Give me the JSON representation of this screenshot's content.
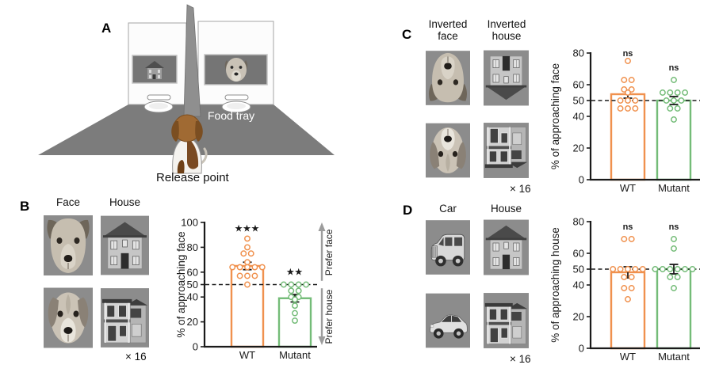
{
  "colors": {
    "wt": "#F0914E",
    "mutant": "#74BC78",
    "annotation_arrow": "#9C9C9C",
    "axis": "#1A1A1A"
  },
  "panelA": {
    "label": "A",
    "food_tray_label": "Food tray",
    "release_point_label": "Release point"
  },
  "panelB": {
    "label": "B",
    "col1": "Face",
    "col2": "House",
    "multiplier": "× 16"
  },
  "panelC": {
    "label": "C",
    "col1": "Inverted face",
    "col2": "Inverted house",
    "multiplier": "× 16"
  },
  "panelD": {
    "label": "D",
    "col1": "Car",
    "col2": "House",
    "multiplier": "× 16"
  },
  "chart_data": [
    {
      "panel": "B",
      "type": "bar",
      "title": "",
      "ylabel": "% of approaching face",
      "ylim": [
        0,
        100
      ],
      "yticks": [
        0,
        20,
        40,
        50,
        60,
        80,
        100
      ],
      "dashed_line": 50,
      "grid": false,
      "legend_position": "none",
      "categories": [
        "WT",
        "Mutant"
      ],
      "series": [
        {
          "name": "WT",
          "color": "#F0914E",
          "mean": 65,
          "sem": 3,
          "sig": "***",
          "sig_y": 93,
          "points": [
            87,
            80,
            75,
            75,
            68,
            64,
            64,
            64,
            64,
            64,
            57,
            57,
            57,
            50
          ]
        },
        {
          "name": "Mutant",
          "color": "#74BC78",
          "mean": 39,
          "sem": 3,
          "sig": "**",
          "sig_y": 58,
          "points": [
            50,
            50,
            50,
            50,
            45,
            45,
            40,
            40,
            38,
            33,
            27,
            21
          ]
        }
      ],
      "annotations": {
        "up_label": "Prefer face",
        "down_label": "Prefer house"
      }
    },
    {
      "panel": "C",
      "type": "bar",
      "title": "",
      "ylabel": "% of approaching  face",
      "ylim": [
        0,
        80
      ],
      "yticks": [
        0,
        20,
        40,
        50,
        60,
        80
      ],
      "dashed_line": 50,
      "grid": false,
      "legend_position": "none",
      "categories": [
        "WT",
        "Mutant"
      ],
      "series": [
        {
          "name": "WT",
          "color": "#F0914E",
          "mean": 54,
          "sem": 2.5,
          "sig": "ns",
          "sig_y": 78,
          "points": [
            75,
            63,
            63,
            57,
            57,
            55,
            50,
            50,
            50,
            45,
            45,
            45
          ]
        },
        {
          "name": "Mutant",
          "color": "#74BC78",
          "mean": 50,
          "sem": 2.5,
          "sig": "ns",
          "sig_y": 69,
          "points": [
            63,
            55,
            55,
            55,
            55,
            50,
            50,
            50,
            45,
            45,
            38
          ]
        }
      ]
    },
    {
      "panel": "D",
      "type": "bar",
      "title": "",
      "ylabel": "% of approaching house",
      "ylim": [
        0,
        80
      ],
      "yticks": [
        0,
        20,
        40,
        50,
        60,
        80
      ],
      "dashed_line": 50,
      "grid": false,
      "legend_position": "none",
      "categories": [
        "WT",
        "Mutant"
      ],
      "series": [
        {
          "name": "WT",
          "color": "#F0914E",
          "mean": 48,
          "sem": 3.5,
          "sig": "ns",
          "sig_y": 75,
          "points": [
            69,
            69,
            50,
            50,
            50,
            50,
            50,
            45,
            45,
            38,
            38,
            31
          ]
        },
        {
          "name": "Mutant",
          "color": "#74BC78",
          "mean": 50,
          "sem": 3,
          "sig": "ns",
          "sig_y": 75,
          "points": [
            69,
            63,
            50,
            50,
            50,
            50,
            50,
            50,
            45,
            45,
            38
          ]
        }
      ]
    }
  ]
}
